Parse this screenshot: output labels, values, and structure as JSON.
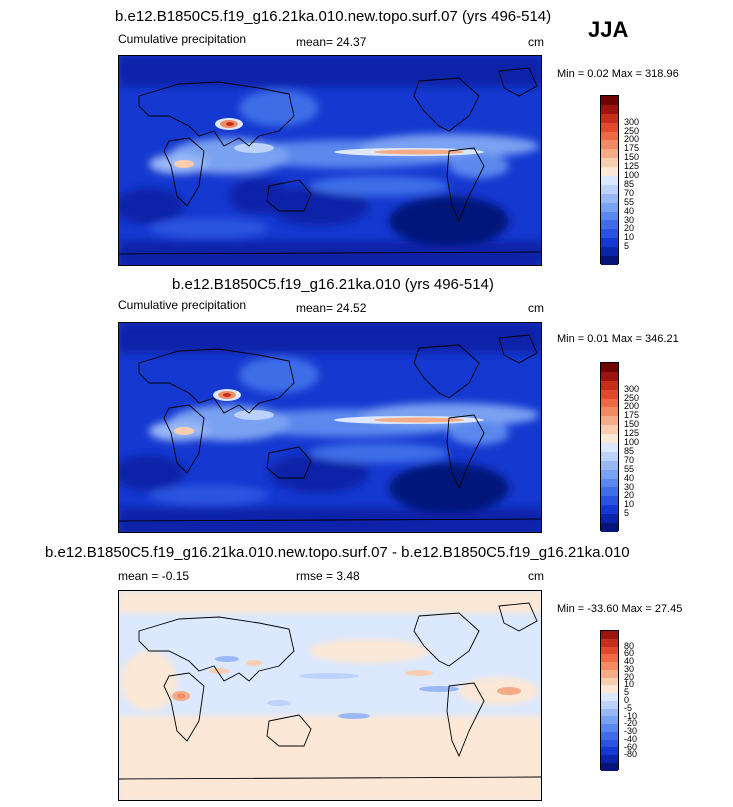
{
  "season": "JJA",
  "panels": [
    {
      "title": "b.e12.B1850C5.f19_g16.21ka.010.new.topo.surf.07 (yrs 496-514)",
      "left_label": "Cumulative precipitation",
      "center_label": "mean=  24.37",
      "units": "cm",
      "minmax": "Min =   0.02 Max = 318.96",
      "colorbar": {
        "colors": [
          "#06147a",
          "#0b24a8",
          "#1538d0",
          "#2a54e0",
          "#3e6ee8",
          "#5b88ee",
          "#7aa2f2",
          "#9ab8f6",
          "#bcd2fa",
          "#dce8fd",
          "#fbe8d6",
          "#f9cdb0",
          "#f6ab87",
          "#f28a63",
          "#ec6a44",
          "#e04b2d",
          "#c5301c",
          "#9c1410",
          "#6e0504"
        ],
        "ticks": [
          "5",
          "10",
          "20",
          "30",
          "40",
          "55",
          "70",
          "85",
          "100",
          "125",
          "150",
          "175",
          "200",
          "250",
          "300"
        ]
      }
    },
    {
      "title": "b.e12.B1850C5.f19_g16.21ka.010 (yrs 496-514)",
      "left_label": "Cumulative precipitation",
      "center_label": "mean=  24.52",
      "units": "cm",
      "minmax": "Min =   0.01 Max = 346.21",
      "colorbar": {
        "colors": [
          "#06147a",
          "#0b24a8",
          "#1538d0",
          "#2a54e0",
          "#3e6ee8",
          "#5b88ee",
          "#7aa2f2",
          "#9ab8f6",
          "#bcd2fa",
          "#dce8fd",
          "#fbe8d6",
          "#f9cdb0",
          "#f6ab87",
          "#f28a63",
          "#ec6a44",
          "#e04b2d",
          "#c5301c",
          "#9c1410",
          "#6e0504"
        ],
        "ticks": [
          "5",
          "10",
          "20",
          "30",
          "40",
          "55",
          "70",
          "85",
          "100",
          "125",
          "150",
          "175",
          "200",
          "250",
          "300"
        ]
      }
    },
    {
      "title": "b.e12.B1850C5.f19_g16.21ka.010.new.topo.surf.07 - b.e12.B1850C5.f19_g16.21ka.010",
      "left_label": "mean =   -0.15",
      "center_label": "rmse =    3.48",
      "units": "cm",
      "minmax": "Min = -33.60 Max =  27.45",
      "colorbar": {
        "colors": [
          "#06147a",
          "#0b24a8",
          "#1538d0",
          "#2a54e0",
          "#3e6ee8",
          "#5b88ee",
          "#7aa2f2",
          "#9ab8f6",
          "#bcd2fa",
          "#dce8fd",
          "#fbe8d6",
          "#f9cdb0",
          "#f6ab87",
          "#f28a63",
          "#ec6a44",
          "#e04b2d",
          "#c5301c",
          "#9c1410"
        ],
        "ticks": [
          "-80",
          "-60",
          "-40",
          "-30",
          "-20",
          "-10",
          "-5",
          "0",
          "5",
          "10",
          "20",
          "30",
          "40",
          "60",
          "80"
        ]
      }
    }
  ],
  "chart_data": [
    {
      "type": "heatmap",
      "title": "b.e12.B1850C5.f19_g16.21ka.010.new.topo.surf.07 (yrs 496-514)",
      "variable": "Cumulative precipitation",
      "units": "cm",
      "mean": 24.37,
      "min": 0.02,
      "max": 318.96,
      "contour_levels": [
        5,
        10,
        20,
        30,
        40,
        55,
        70,
        85,
        100,
        125,
        150,
        175,
        200,
        250,
        300
      ]
    },
    {
      "type": "heatmap",
      "title": "b.e12.B1850C5.f19_g16.21ka.010 (yrs 496-514)",
      "variable": "Cumulative precipitation",
      "units": "cm",
      "mean": 24.52,
      "min": 0.01,
      "max": 346.21,
      "contour_levels": [
        5,
        10,
        20,
        30,
        40,
        55,
        70,
        85,
        100,
        125,
        150,
        175,
        200,
        250,
        300
      ]
    },
    {
      "type": "heatmap",
      "title": "b.e12.B1850C5.f19_g16.21ka.010.new.topo.surf.07 - b.e12.B1850C5.f19_g16.21ka.010",
      "units": "cm",
      "mean": -0.15,
      "rmse": 3.48,
      "min": -33.6,
      "max": 27.45,
      "contour_levels": [
        -80,
        -60,
        -40,
        -30,
        -20,
        -10,
        -5,
        0,
        5,
        10,
        20,
        30,
        40,
        60,
        80
      ]
    }
  ]
}
